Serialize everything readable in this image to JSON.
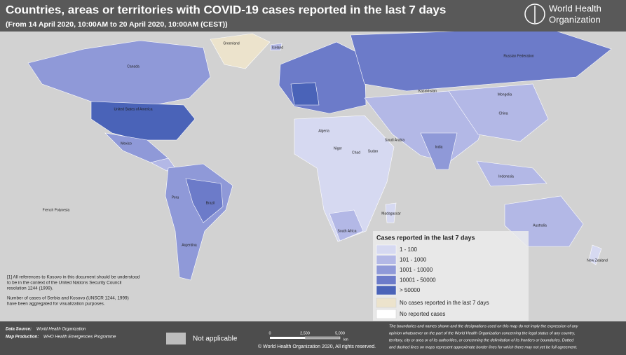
{
  "header": {
    "title": "Countries, areas or territories with COVID-19  cases reported in the last 7 days",
    "subtitle": "(From 14 April 2020, 10:00AM  to 20 April 2020, 10:00AM (CEST))",
    "logo_text": [
      "World Health",
      "Organization"
    ]
  },
  "legend": {
    "title": "Cases reported in the last 7 days",
    "items": [
      {
        "label": "1 - 100",
        "color": "#d6d9f1"
      },
      {
        "label": "101 - 1000",
        "color": "#b3b8e6"
      },
      {
        "label": "1001 - 10000",
        "color": "#8f99d8"
      },
      {
        "label": "10001 - 50000",
        "color": "#6c7bc9"
      },
      {
        "label": "> 50000",
        "color": "#4a63b8"
      }
    ],
    "no_cases": {
      "label": "No cases reported in the last 7 days",
      "color": "#ece3cc"
    },
    "no_reported": {
      "label": "No reported cases",
      "color": "#ffffff"
    }
  },
  "notes": [
    [
      "[1] All references to Kosovo in this document should be understood",
      "to be in the context of the United Nations Security Council",
      "resolution 1244 (1999)."
    ],
    [
      "Number of cases of Serbia and Kosovo (UNSCR 1244, 1999)",
      " have been aggregated for visualization purposes."
    ]
  ],
  "footer": {
    "data_source_label": "Data Source:",
    "data_source": "World Health Organization",
    "map_production_label": "Map Production:",
    "map_production": "WHO Health Emergencies Programme",
    "not_applicable": "Not applicable",
    "scale_ticks": [
      "0",
      "2,500",
      "5,000"
    ],
    "scale_unit": "km",
    "copyright": "© World Health Organization  2020,  All rights reserved.",
    "disclaimer": [
      "The boundaries and names shown and the designations used on this map do not imply the expression of any",
      "opinion whatsoever on the part of the World Health Organization concerning the legal status of any country,",
      "territory, city or area or of its authorities, or concerning the delimitation of its frontiers or boundaries. Dotted",
      "and dashed lines on maps represent approximate border lines for which there may not yet be full agreement."
    ]
  },
  "map_labels": [
    "Greenland",
    "Iceland",
    "Canada",
    "United States of America",
    "Mexico",
    "Brazil",
    "Peru",
    "Argentina",
    "Russian Federation",
    "Kazakhstan",
    "Mongolia",
    "China",
    "India",
    "Saudi Arabia",
    "Algeria",
    "Niger",
    "Chad",
    "Sudan",
    "South Africa",
    "Madagascar",
    "Indonesia",
    "Australia",
    "New Zealand",
    "French Polynesia"
  ]
}
